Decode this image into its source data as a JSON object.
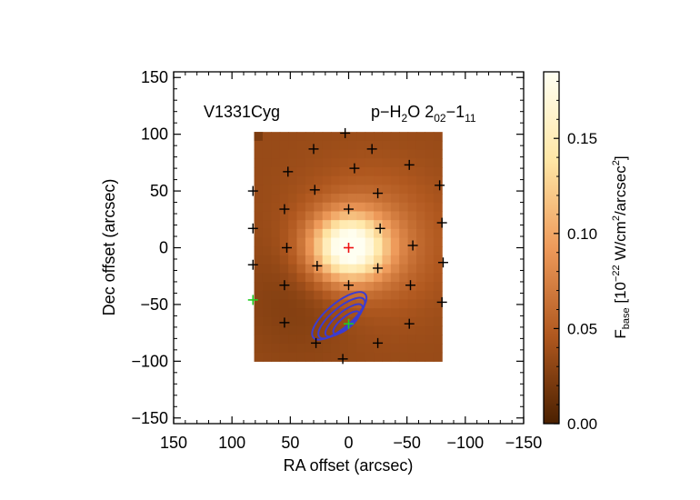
{
  "chart_data": {
    "type": "heatmap",
    "title_left": "V1331Cyg",
    "title_right": {
      "species": "p−H",
      "sub2": "2",
      "rest": "O 2",
      "trans_lo": "02",
      "dash": "−1",
      "trans_hi": "11"
    },
    "xlabel": "RA offset (arcsec)",
    "ylabel": "Dec offset (arcsec)",
    "xlim": [
      150,
      -150
    ],
    "ylim": [
      -155,
      155
    ],
    "xticks": [
      150,
      100,
      50,
      0,
      -50,
      -100,
      -150
    ],
    "yticks": [
      150,
      100,
      50,
      0,
      -50,
      -100,
      -150
    ],
    "xtick_labels": [
      "150",
      "100",
      "50",
      "0",
      "−50",
      "−100",
      "−150"
    ],
    "ytick_labels": [
      "150",
      "100",
      "50",
      "0",
      "−50",
      "−100",
      "−150"
    ],
    "image_extent": {
      "x": [
        81,
        -80
      ],
      "y": [
        -100,
        102
      ]
    },
    "image_peak": {
      "x": 0,
      "y": 0,
      "value": 0.18
    },
    "image_background": 0.035,
    "colorbar": {
      "label_main": "F",
      "label_sub": "base",
      "label_units_a": " [10",
      "label_exp": "−22",
      "label_units_b": " W/cm",
      "label_sq": "2",
      "label_units_c": "/arcsec",
      "label_sq2": "2",
      "label_close": "]",
      "min": 0.0,
      "max": 0.185,
      "ticks": [
        0.0,
        0.05,
        0.1,
        0.15
      ],
      "tick_labels": [
        "0.00",
        "0.05",
        "0.10",
        "0.15"
      ],
      "colors": [
        "#4a2000",
        "#b0581f",
        "#ee9a5a",
        "#ffe7a6",
        "#fffff2"
      ]
    },
    "spaxels_black": [
      [
        3,
        101
      ],
      [
        -20,
        87
      ],
      [
        -5,
        70
      ],
      [
        -52,
        73
      ],
      [
        -78,
        55
      ],
      [
        52,
        67
      ],
      [
        30,
        87
      ],
      [
        82,
        50
      ],
      [
        29,
        51
      ],
      [
        0,
        34
      ],
      [
        -25,
        48
      ],
      [
        -80,
        22
      ],
      [
        55,
        34
      ],
      [
        -27,
        17
      ],
      [
        82,
        17
      ],
      [
        53,
        0
      ],
      [
        -55,
        2
      ],
      [
        -81,
        -13
      ],
      [
        82,
        -15
      ],
      [
        27,
        -16
      ],
      [
        -25,
        -18
      ],
      [
        55,
        -33
      ],
      [
        0,
        -33
      ],
      [
        -53,
        -33
      ],
      [
        -80,
        -48
      ],
      [
        55,
        -66
      ],
      [
        -52,
        -67
      ],
      [
        28,
        -84
      ],
      [
        -25,
        -84
      ],
      [
        5,
        -98
      ]
    ],
    "spaxels_green": [
      [
        82,
        -46
      ],
      [
        0,
        -67
      ]
    ],
    "spaxels_red": [
      [
        0,
        0
      ]
    ],
    "contours": [
      {
        "cx": 8,
        "cy": -60,
        "rx": 29,
        "ry": 11,
        "angle": -40
      },
      {
        "cx": 6,
        "cy": -62,
        "rx": 25,
        "ry": 9,
        "angle": -40
      },
      {
        "cx": 4,
        "cy": -64,
        "rx": 20,
        "ry": 7,
        "angle": -40
      },
      {
        "cx": 2,
        "cy": -66,
        "rx": 14,
        "ry": 5,
        "angle": -40
      }
    ],
    "contour_color": "#3c3cd0",
    "grid": false,
    "legend": "none"
  }
}
